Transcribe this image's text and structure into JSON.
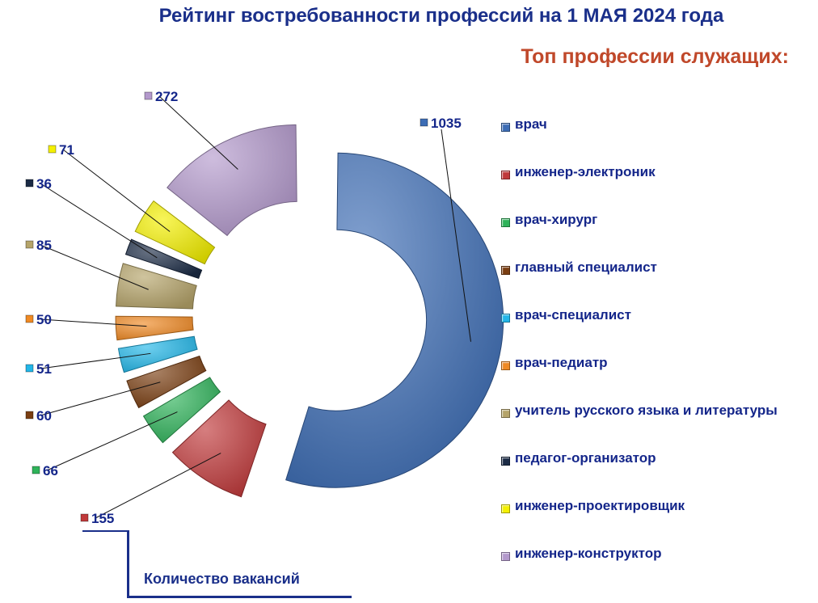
{
  "title": "Рейтинг востребованности профессий на 1 МАЯ 2024 года",
  "subtitle": "Топ профессии служащих:",
  "footnote": "Количество вакансий",
  "chart_data": {
    "type": "pie",
    "categories": [
      "врач",
      "инженер-электроник",
      "врач-хирург",
      "главный специалист",
      "врач-специалист",
      "врач-педиатр",
      "учитель русского языка и литературы",
      "педагог-организатор",
      "инженер-проектировщик",
      "инженер-конструктор"
    ],
    "values": [
      1035,
      155,
      66,
      60,
      51,
      50,
      85,
      36,
      71,
      272
    ],
    "colors": [
      "#3d6db5",
      "#c0393a",
      "#2fb35a",
      "#7a3e12",
      "#22b6e8",
      "#f08a24",
      "#b5a46a",
      "#1b2b45",
      "#f4f000",
      "#b399cc"
    ],
    "style": "semi-donut exploded, labels with leader lines, legend on right"
  }
}
